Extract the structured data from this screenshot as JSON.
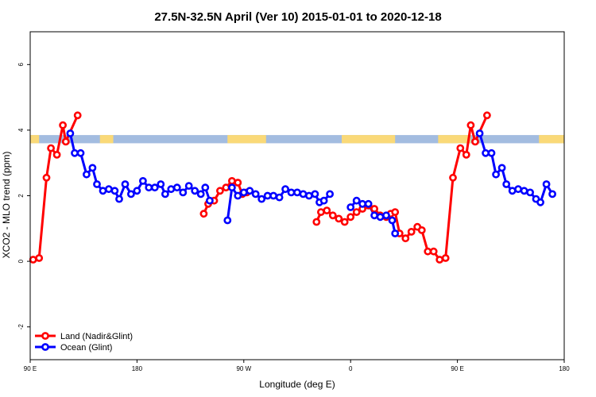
{
  "chart_data": {
    "type": "line",
    "title": "27.5N-32.5N April (Ver 10)   2015-01-01 to 2020-12-18",
    "xlabel": "Longitude (deg E)",
    "ylabel": "XCO2 - MLO trend (ppm)",
    "xlim": [
      90,
      450
    ],
    "ylim": [
      -3,
      7
    ],
    "x_ticks": [
      {
        "value": 90,
        "label": "90 E"
      },
      {
        "value": 162,
        "label": "180"
      },
      {
        "value": 234,
        "label": "90 W"
      },
      {
        "value": 306,
        "label": "0"
      },
      {
        "value": 378,
        "label": "90 E"
      },
      {
        "value": 450,
        "label": "180"
      }
    ],
    "y_ticks": [
      {
        "value": -2,
        "label": "-2"
      },
      {
        "value": 0,
        "label": "0"
      },
      {
        "value": 2,
        "label": "2"
      },
      {
        "value": 4,
        "label": "4"
      },
      {
        "value": 6,
        "label": "6"
      }
    ],
    "grid": false,
    "legend_position": "bottom-left",
    "land_ocean_strip": {
      "y_range": [
        3.6,
        3.85
      ],
      "ocean_color": "#a3bce0",
      "land_color": "#fad978",
      "land_spans": [
        [
          90,
          96
        ],
        [
          137,
          146
        ],
        [
          223,
          249
        ],
        [
          300,
          336
        ],
        [
          365,
          387
        ],
        [
          433,
          450
        ]
      ]
    },
    "series": [
      {
        "name": "Land (Nadir&Glint)",
        "color": "#ff0000",
        "segments": [
          [
            [
              92,
              0.05
            ],
            [
              96,
              0.1
            ],
            [
              101,
              2.55
            ],
            [
              104,
              3.45
            ],
            [
              108,
              3.25
            ],
            [
              112,
              4.15
            ],
            [
              114,
              3.65
            ],
            [
              122,
              4.45
            ]
          ],
          [
            [
              207,
              1.45
            ],
            [
              210,
              1.75
            ],
            [
              214,
              1.85
            ],
            [
              218,
              2.15
            ],
            [
              222,
              2.25
            ],
            [
              226,
              2.45
            ],
            [
              230,
              2.4
            ],
            [
              233,
              2.05
            ],
            [
              236,
              2.1
            ]
          ],
          [
            [
              283,
              1.2
            ],
            [
              286,
              1.5
            ],
            [
              290,
              1.55
            ],
            [
              294,
              1.4
            ],
            [
              298,
              1.3
            ],
            [
              302,
              1.2
            ],
            [
              306,
              1.35
            ],
            [
              310,
              1.5
            ],
            [
              314,
              1.6
            ],
            [
              318,
              1.7
            ],
            [
              322,
              1.6
            ],
            [
              326,
              1.4
            ],
            [
              330,
              1.35
            ],
            [
              333,
              1.45
            ],
            [
              336,
              1.5
            ],
            [
              339,
              0.85
            ],
            [
              343,
              0.7
            ],
            [
              347,
              0.9
            ],
            [
              351,
              1.05
            ],
            [
              354,
              0.95
            ],
            [
              358,
              0.3
            ],
            [
              362,
              0.3
            ],
            [
              366,
              0.05
            ],
            [
              370,
              0.1
            ],
            [
              375,
              2.55
            ],
            [
              380,
              3.45
            ],
            [
              384,
              3.25
            ],
            [
              387,
              4.15
            ],
            [
              390,
              3.65
            ],
            [
              398,
              4.45
            ]
          ]
        ]
      },
      {
        "name": "Ocean (Glint)",
        "color": "#0000ff",
        "segments": [
          [
            [
              117,
              3.9
            ],
            [
              120,
              3.3
            ],
            [
              124,
              3.3
            ],
            [
              128,
              2.65
            ],
            [
              132,
              2.85
            ],
            [
              135,
              2.35
            ],
            [
              139,
              2.15
            ],
            [
              143,
              2.2
            ],
            [
              147,
              2.15
            ],
            [
              150,
              1.9
            ],
            [
              154,
              2.35
            ],
            [
              158,
              2.05
            ],
            [
              162,
              2.15
            ],
            [
              166,
              2.45
            ],
            [
              170,
              2.25
            ],
            [
              174,
              2.25
            ],
            [
              178,
              2.35
            ],
            [
              181,
              2.05
            ],
            [
              185,
              2.2
            ],
            [
              189,
              2.25
            ],
            [
              193,
              2.1
            ],
            [
              197,
              2.3
            ],
            [
              201,
              2.15
            ],
            [
              205,
              2.05
            ],
            [
              208,
              2.25
            ],
            [
              211,
              1.85
            ]
          ],
          [
            [
              223,
              1.25
            ],
            [
              226,
              2.25
            ],
            [
              230,
              2.0
            ],
            [
              234,
              2.1
            ],
            [
              238,
              2.15
            ],
            [
              242,
              2.05
            ],
            [
              246,
              1.9
            ],
            [
              250,
              2.0
            ],
            [
              254,
              2.0
            ],
            [
              258,
              1.95
            ],
            [
              262,
              2.2
            ],
            [
              266,
              2.1
            ],
            [
              270,
              2.1
            ],
            [
              274,
              2.05
            ],
            [
              278,
              2.0
            ],
            [
              282,
              2.05
            ],
            [
              285,
              1.8
            ],
            [
              288,
              1.85
            ],
            [
              292,
              2.05
            ]
          ],
          [
            [
              306,
              1.65
            ],
            [
              310,
              1.85
            ],
            [
              314,
              1.75
            ],
            [
              318,
              1.75
            ],
            [
              322,
              1.4
            ],
            [
              326,
              1.35
            ],
            [
              330,
              1.4
            ],
            [
              334,
              1.25
            ],
            [
              336,
              0.85
            ]
          ],
          [
            [
              393,
              3.9
            ],
            [
              397,
              3.3
            ],
            [
              401,
              3.3
            ],
            [
              404,
              2.65
            ],
            [
              408,
              2.85
            ],
            [
              411,
              2.35
            ],
            [
              415,
              2.15
            ],
            [
              419,
              2.2
            ],
            [
              423,
              2.15
            ],
            [
              427,
              2.1
            ],
            [
              431,
              1.9
            ],
            [
              434,
              1.8
            ],
            [
              438,
              2.35
            ],
            [
              442,
              2.05
            ]
          ]
        ]
      }
    ]
  }
}
